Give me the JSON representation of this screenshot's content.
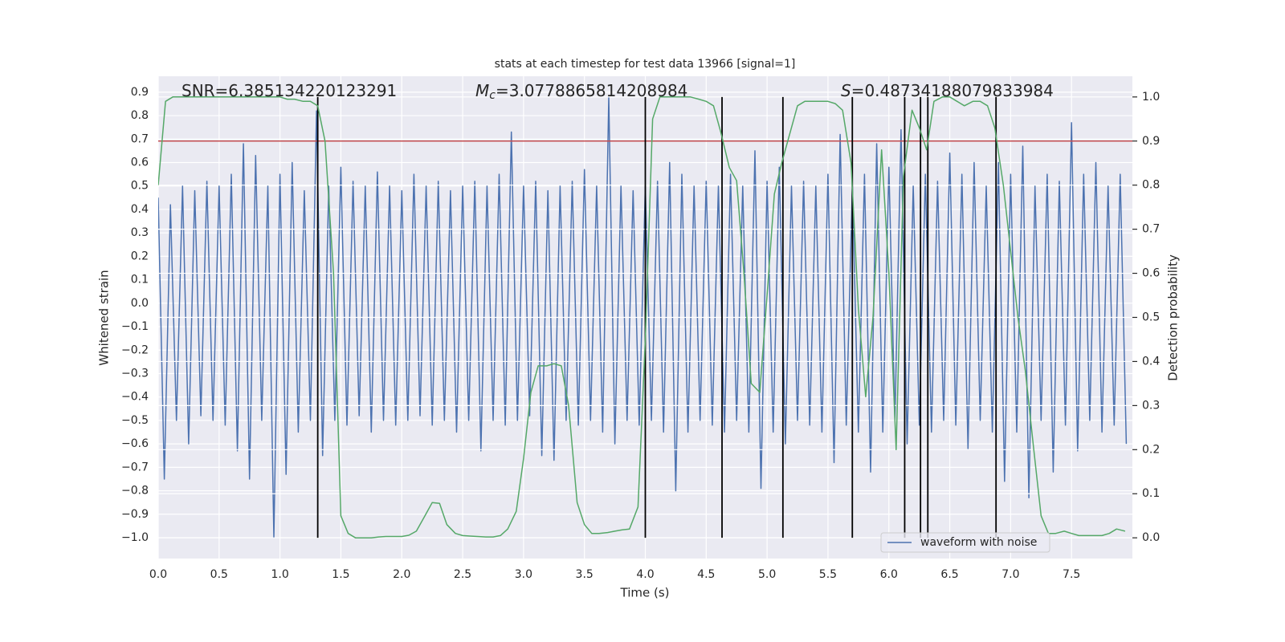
{
  "chart_data": {
    "type": "line",
    "title": "stats at each timestep for test data 13966 [signal=1]",
    "xlabel": "Time (s)",
    "ylabel": "Whitened strain",
    "y2label": "Detection probability",
    "grid": true,
    "legend": "lower right",
    "xlim": [
      0,
      8.0
    ],
    "ylim": [
      -1.089,
      0.968
    ],
    "y2lim": [
      -0.047,
      1.047
    ],
    "xticks": [
      {
        "value": 0,
        "label": "0.0"
      },
      {
        "value": 0.5,
        "label": "0.5"
      },
      {
        "value": 1,
        "label": "1.0"
      },
      {
        "value": 1.5,
        "label": "1.5"
      },
      {
        "value": 2,
        "label": "2.0"
      },
      {
        "value": 2.5,
        "label": "2.5"
      },
      {
        "value": 3,
        "label": "3.0"
      },
      {
        "value": 3.5,
        "label": "3.5"
      },
      {
        "value": 4,
        "label": "4.0"
      },
      {
        "value": 4.5,
        "label": "4.5"
      },
      {
        "value": 5,
        "label": "5.0"
      },
      {
        "value": 5.5,
        "label": "5.5"
      },
      {
        "value": 6,
        "label": "6.0"
      },
      {
        "value": 6.5,
        "label": "6.5"
      },
      {
        "value": 7,
        "label": "7.0"
      },
      {
        "value": 7.5,
        "label": "7.5"
      }
    ],
    "yticks": [
      {
        "value": -1.0,
        "label": "−1.0"
      },
      {
        "value": -0.9,
        "label": "−0.9"
      },
      {
        "value": -0.8,
        "label": "−0.8"
      },
      {
        "value": -0.7,
        "label": "−0.7"
      },
      {
        "value": -0.6,
        "label": "−0.6"
      },
      {
        "value": -0.5,
        "label": "−0.5"
      },
      {
        "value": -0.4,
        "label": "−0.4"
      },
      {
        "value": -0.3,
        "label": "−0.3"
      },
      {
        "value": -0.2,
        "label": "−0.2"
      },
      {
        "value": -0.1,
        "label": "−0.1"
      },
      {
        "value": 0,
        "label": "0.0"
      },
      {
        "value": 0.1,
        "label": "0.1"
      },
      {
        "value": 0.2,
        "label": "0.2"
      },
      {
        "value": 0.3,
        "label": "0.3"
      },
      {
        "value": 0.4,
        "label": "0.4"
      },
      {
        "value": 0.5,
        "label": "0.5"
      },
      {
        "value": 0.6,
        "label": "0.6"
      },
      {
        "value": 0.7,
        "label": "0.7"
      },
      {
        "value": 0.8,
        "label": "0.8"
      },
      {
        "value": 0.9,
        "label": "0.9"
      }
    ],
    "y2ticks": [
      {
        "value": 0,
        "label": "0.0"
      },
      {
        "value": 0.1,
        "label": "0.1"
      },
      {
        "value": 0.2,
        "label": "0.2"
      },
      {
        "value": 0.3,
        "label": "0.3"
      },
      {
        "value": 0.4,
        "label": "0.4"
      },
      {
        "value": 0.5,
        "label": "0.5"
      },
      {
        "value": 0.6,
        "label": "0.6"
      },
      {
        "value": 0.7,
        "label": "0.7"
      },
      {
        "value": 0.8,
        "label": "0.8"
      },
      {
        "value": 0.9,
        "label": "0.9"
      },
      {
        "value": 1,
        "label": "1.0"
      }
    ],
    "annotations": [
      {
        "text": "SNR=6.385134220123291"
      },
      {
        "symbol": "M",
        "subscript": "c",
        "text": "=3.0778865814208984"
      },
      {
        "symbol": "S",
        "text": "=0.48734188079833984"
      }
    ],
    "series": [
      {
        "name": "waveform with noise",
        "color": "#4c72b0",
        "x": [
          0,
          0.05,
          0.1,
          0.15,
          0.2,
          0.25,
          0.3,
          0.35,
          0.4,
          0.45,
          0.5,
          0.55,
          0.6,
          0.65,
          0.7,
          0.75,
          0.8,
          0.85,
          0.9,
          0.95,
          1.0,
          1.05,
          1.1,
          1.15,
          1.2,
          1.25,
          1.3,
          1.35,
          1.4,
          1.45,
          1.5,
          1.55,
          1.6,
          1.65,
          1.7,
          1.75,
          1.8,
          1.85,
          1.9,
          1.95,
          2.0,
          2.05,
          2.1,
          2.15,
          2.2,
          2.25,
          2.3,
          2.35,
          2.4,
          2.45,
          2.5,
          2.55,
          2.6,
          2.65,
          2.7,
          2.75,
          2.8,
          2.85,
          2.9,
          2.95,
          3.0,
          3.05,
          3.1,
          3.15,
          3.2,
          3.25,
          3.3,
          3.35,
          3.4,
          3.45,
          3.5,
          3.55,
          3.6,
          3.65,
          3.7,
          3.75,
          3.8,
          3.85,
          3.9,
          3.95,
          4.0,
          4.05,
          4.1,
          4.15,
          4.2,
          4.25,
          4.3,
          4.35,
          4.4,
          4.45,
          4.5,
          4.55,
          4.6,
          4.65,
          4.7,
          4.75,
          4.8,
          4.85,
          4.9,
          4.95,
          5.0,
          5.05,
          5.1,
          5.15,
          5.2,
          5.25,
          5.3,
          5.35,
          5.4,
          5.45,
          5.5,
          5.55,
          5.6,
          5.65,
          5.7,
          5.75,
          5.8,
          5.85,
          5.9,
          5.95,
          6.0,
          6.05,
          6.1,
          6.15,
          6.2,
          6.25,
          6.3,
          6.35,
          6.4,
          6.45,
          6.5,
          6.55,
          6.6,
          6.65,
          6.7,
          6.75,
          6.8,
          6.85,
          6.9,
          6.95,
          7.0,
          7.05,
          7.1,
          7.15,
          7.2,
          7.25,
          7.3,
          7.35,
          7.4,
          7.45,
          7.5,
          7.55,
          7.6,
          7.65,
          7.7,
          7.75,
          7.8,
          7.85,
          7.9,
          7.95
        ],
        "values": [
          0.45,
          -0.75,
          0.42,
          -0.5,
          0.5,
          -0.6,
          0.48,
          -0.48,
          0.52,
          -0.5,
          0.5,
          -0.52,
          0.55,
          -0.63,
          0.68,
          -0.75,
          0.63,
          -0.5,
          0.5,
          -1.0,
          0.55,
          -0.73,
          0.6,
          -0.55,
          0.48,
          -0.5,
          0.82,
          -0.65,
          0.5,
          -0.5,
          0.58,
          -0.52,
          0.52,
          -0.48,
          0.5,
          -0.55,
          0.56,
          -0.5,
          0.5,
          -0.52,
          0.48,
          -0.5,
          0.55,
          -0.48,
          0.5,
          -0.52,
          0.52,
          -0.5,
          0.48,
          -0.55,
          0.5,
          -0.5,
          0.52,
          -0.63,
          0.5,
          -0.5,
          0.55,
          -0.52,
          0.73,
          -0.5,
          0.5,
          -0.48,
          0.52,
          -0.65,
          0.48,
          -0.67,
          0.5,
          -0.5,
          0.52,
          -0.52,
          0.57,
          -0.5,
          0.5,
          -0.55,
          0.88,
          -0.6,
          0.5,
          -0.5,
          0.48,
          -0.52,
          0.5,
          -0.5,
          0.52,
          -0.55,
          0.6,
          -0.8,
          0.55,
          -0.55,
          0.5,
          -0.5,
          0.52,
          -0.52,
          0.5,
          -0.55,
          0.55,
          -0.5,
          0.5,
          -0.55,
          0.65,
          -0.79,
          0.52,
          -0.55,
          0.58,
          -0.6,
          0.5,
          -0.5,
          0.52,
          -0.52,
          0.5,
          -0.55,
          0.55,
          -0.68,
          0.72,
          -0.52,
          0.5,
          -0.55,
          0.55,
          -0.72,
          0.68,
          -0.55,
          0.58,
          -0.5,
          0.74,
          -0.6,
          0.5,
          -0.52,
          0.55,
          -0.55,
          0.52,
          -0.5,
          0.64,
          -0.52,
          0.55,
          -0.62,
          0.6,
          -0.5,
          0.5,
          -0.55,
          0.6,
          -0.76,
          0.55,
          -0.55,
          0.67,
          -0.83,
          0.5,
          -0.5,
          0.55,
          -0.72,
          0.52,
          -0.52,
          0.77,
          -0.63,
          0.55,
          -0.5,
          0.6,
          -0.55,
          0.5,
          -0.52,
          0.55,
          -0.6
        ]
      },
      {
        "axis": "y2",
        "color": "#55a868",
        "x": [
          0,
          0.06,
          0.12,
          0.19,
          0.25,
          0.31,
          0.37,
          0.44,
          0.5,
          0.56,
          0.62,
          0.69,
          0.75,
          0.81,
          0.87,
          0.94,
          1.0,
          1.06,
          1.12,
          1.19,
          1.25,
          1.31,
          1.37,
          1.44,
          1.5,
          1.56,
          1.62,
          1.69,
          1.75,
          1.81,
          1.87,
          1.94,
          2.0,
          2.06,
          2.12,
          2.19,
          2.25,
          2.31,
          2.37,
          2.44,
          2.5,
          2.56,
          2.62,
          2.69,
          2.75,
          2.81,
          2.87,
          2.94,
          3.0,
          3.06,
          3.12,
          3.19,
          3.25,
          3.31,
          3.37,
          3.44,
          3.5,
          3.56,
          3.62,
          3.69,
          3.75,
          3.81,
          3.87,
          3.94,
          4.0,
          4.06,
          4.12,
          4.19,
          4.25,
          4.31,
          4.37,
          4.44,
          4.5,
          4.56,
          4.62,
          4.69,
          4.75,
          4.81,
          4.87,
          4.94,
          5.0,
          5.06,
          5.12,
          5.19,
          5.25,
          5.31,
          5.37,
          5.44,
          5.5,
          5.56,
          5.62,
          5.69,
          5.75,
          5.81,
          5.87,
          5.94,
          6.0,
          6.06,
          6.12,
          6.19,
          6.25,
          6.31,
          6.37,
          6.44,
          6.5,
          6.56,
          6.62,
          6.69,
          6.75,
          6.81,
          6.87,
          6.94,
          7.0,
          7.06,
          7.12,
          7.19,
          7.25,
          7.31,
          7.37,
          7.44,
          7.5,
          7.56,
          7.62,
          7.69,
          7.75,
          7.81,
          7.87,
          7.94
        ],
        "values": [
          0.8,
          0.99,
          1.0,
          1.0,
          1.0,
          1.0,
          1.0,
          1.0,
          1.0,
          1.0,
          1.0,
          1.0,
          1.0,
          1.0,
          1.0,
          1.0,
          1.0,
          0.995,
          0.995,
          0.99,
          0.99,
          0.98,
          0.9,
          0.6,
          0.05,
          0.01,
          0.0,
          0.0,
          0.0,
          0.002,
          0.003,
          0.003,
          0.003,
          0.006,
          0.015,
          0.05,
          0.08,
          0.078,
          0.03,
          0.01,
          0.005,
          0.004,
          0.003,
          0.002,
          0.002,
          0.005,
          0.02,
          0.06,
          0.18,
          0.33,
          0.39,
          0.39,
          0.395,
          0.39,
          0.3,
          0.08,
          0.03,
          0.01,
          0.01,
          0.012,
          0.015,
          0.018,
          0.02,
          0.07,
          0.45,
          0.95,
          1.0,
          1.0,
          1.0,
          1.0,
          1.0,
          0.995,
          0.99,
          0.98,
          0.92,
          0.84,
          0.81,
          0.6,
          0.35,
          0.33,
          0.55,
          0.78,
          0.85,
          0.92,
          0.98,
          0.99,
          0.99,
          0.99,
          0.99,
          0.985,
          0.97,
          0.85,
          0.52,
          0.32,
          0.5,
          0.88,
          0.6,
          0.2,
          0.82,
          0.97,
          0.93,
          0.88,
          0.99,
          1.0,
          1.0,
          0.99,
          0.98,
          0.99,
          0.99,
          0.98,
          0.93,
          0.8,
          0.65,
          0.5,
          0.38,
          0.2,
          0.05,
          0.01,
          0.01,
          0.015,
          0.01,
          0.005,
          0.005,
          0.005,
          0.005,
          0.01,
          0.02,
          0.015
        ]
      }
    ],
    "hlines": [
      {
        "axis": "y2",
        "value": 0.9,
        "color": "#c44e52"
      }
    ],
    "vlines": {
      "axis": "y2",
      "ymin": 0,
      "ymax": 1,
      "color": "#000000",
      "x": [
        1.31,
        4.0,
        4.63,
        5.13,
        5.7,
        6.13,
        6.26,
        6.32,
        6.88
      ]
    }
  }
}
